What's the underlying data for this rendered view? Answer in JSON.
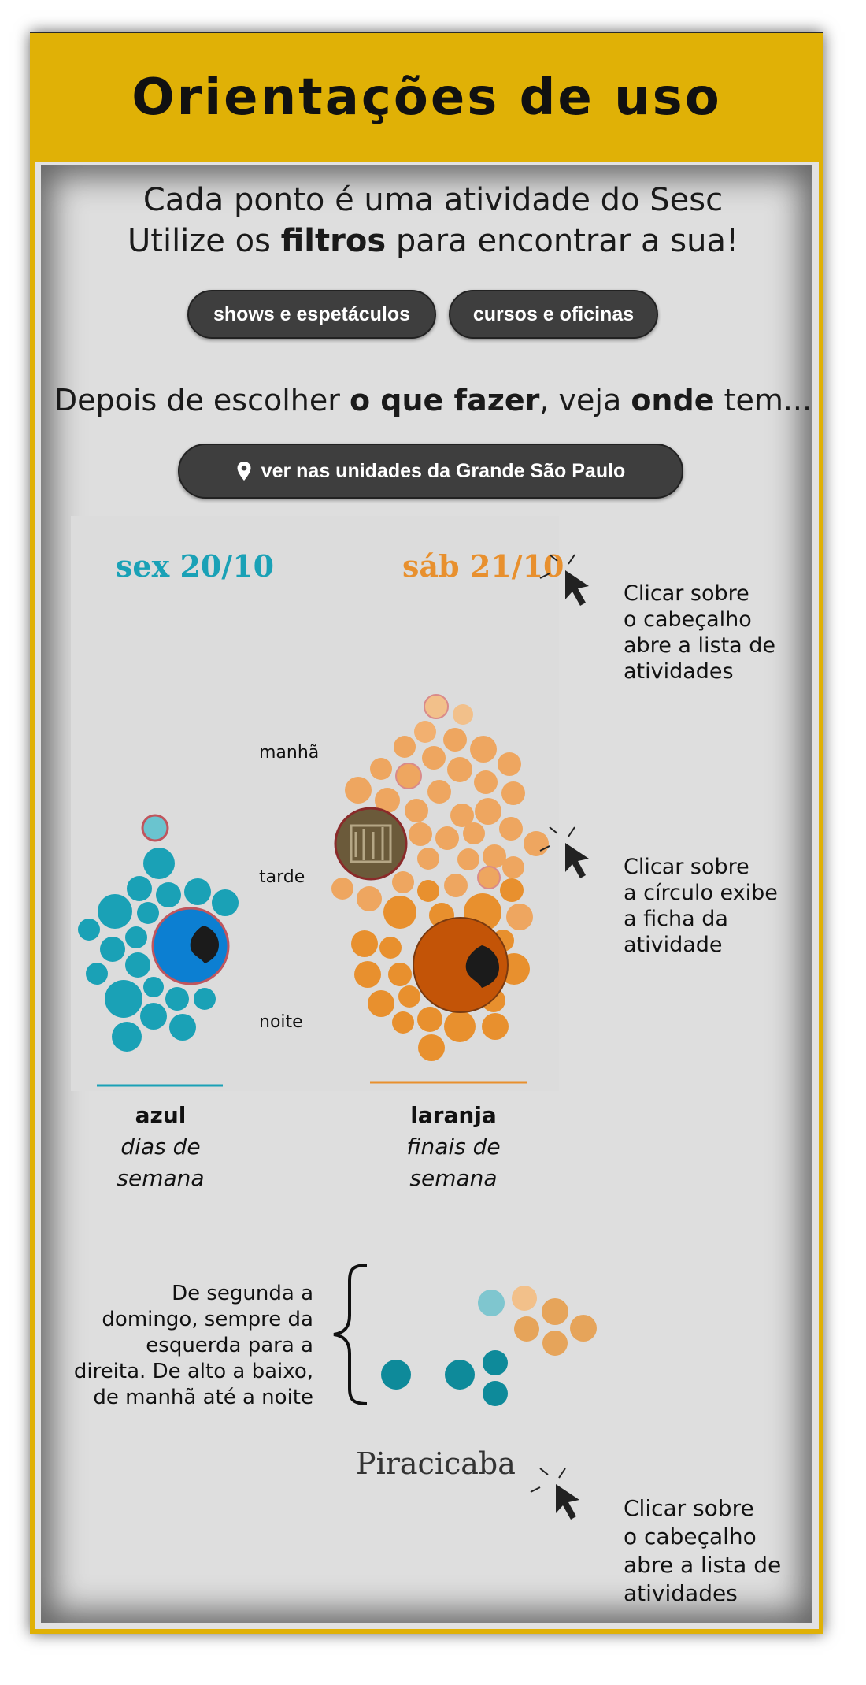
{
  "title": "Orientações de uso",
  "intro": {
    "line1": "Cada ponto é uma atividade do Sesc",
    "line2_pre": "Utilize os ",
    "line2_bold": "filtros",
    "line2_post": " para encontrar a sua!"
  },
  "filters": [
    "shows e espetáculos",
    "cursos e oficinas"
  ],
  "where": {
    "pre": "Depois de escolher ",
    "bold1": "o que fazer",
    "mid": ", veja ",
    "bold2": "onde",
    "post": " tem..."
  },
  "units_button": "ver nas unidades da Grande São Paulo",
  "dates": {
    "weekday": "sex 20/10",
    "weekend": "sáb 21/10"
  },
  "times": {
    "morning": "manhã",
    "afternoon": "tarde",
    "night": "noite"
  },
  "hints": {
    "header": [
      "Clicar sobre",
      "o cabeçalho",
      "abre a lista de",
      "atividades"
    ],
    "circle": [
      "Clicar sobre",
      "a círculo exibe",
      "a ficha da",
      "atividade"
    ],
    "header2": [
      "Clicar sobre",
      "o cabeçalho",
      "abre a lista de",
      "atividades"
    ]
  },
  "legend": {
    "blue_title": "azul",
    "blue_desc": [
      "dias de",
      "semana"
    ],
    "orange_title": "laranja",
    "orange_desc": [
      "finais de",
      "semana"
    ]
  },
  "order_text": [
    "De segunda a",
    "domingo, sempre da",
    "esquerda para a",
    "direita. De alto a baixo,",
    "de manhã até a noite"
  ],
  "city": "Piracicaba",
  "colors": {
    "accent": "#e0b106",
    "blue": "#1aa1b6",
    "orange": "#e8902e",
    "dark_orange": "#d76a0c"
  }
}
